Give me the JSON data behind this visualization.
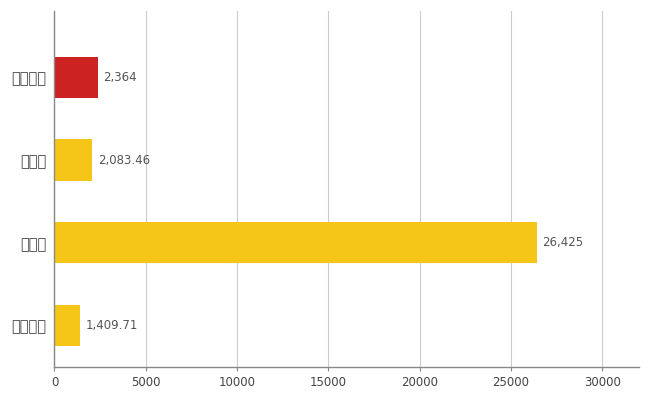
{
  "categories": [
    "福知山市",
    "県平均",
    "県最大",
    "全国平均"
  ],
  "values": [
    2364,
    2083.46,
    26425,
    1409.71
  ],
  "labels": [
    "2,364",
    "2,083.46",
    "26,425",
    "1,409.71"
  ],
  "bar_colors": [
    "#cc2222",
    "#f5c518",
    "#f5c518",
    "#f5c518"
  ],
  "xlim": [
    0,
    32000
  ],
  "xticks": [
    0,
    5000,
    10000,
    15000,
    20000,
    25000,
    30000
  ],
  "background_color": "#ffffff",
  "grid_color": "#cccccc",
  "label_color": "#555555",
  "tick_label_color": "#444444",
  "bar_height": 0.5,
  "label_fontsize": 8.5,
  "ytick_fontsize": 10.5
}
